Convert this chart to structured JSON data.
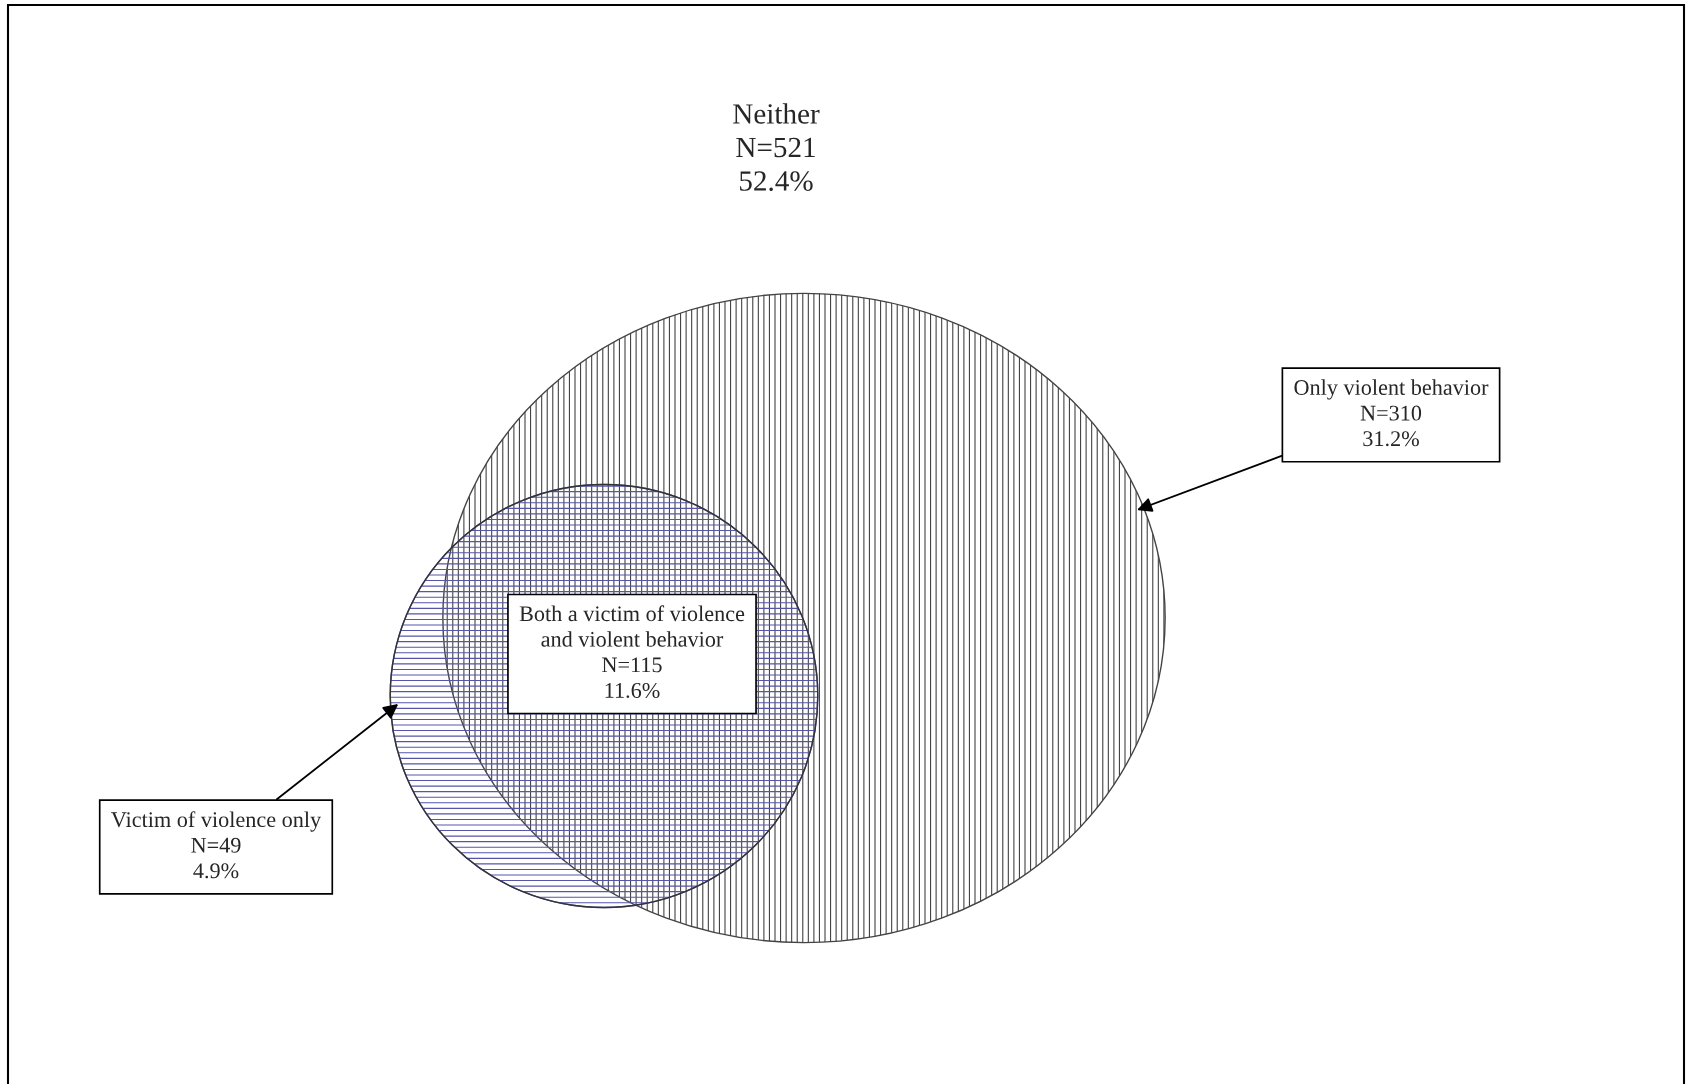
{
  "chart_data": {
    "type": "other",
    "categories": [
      "Neither",
      "Only violent behavior",
      "Both a victim of violence and violent behavior",
      "Victim of violence only"
    ],
    "series": [
      {
        "values": [
          521,
          310,
          115,
          49
        ],
        "value_labels": [
          "N=521",
          "N=310",
          "N=115",
          "N=49"
        ]
      },
      {
        "values": [
          52.4,
          31.2,
          11.6,
          4.9
        ],
        "value_labels": [
          "52.4%",
          "31.2%",
          "11.6%",
          "4.9%"
        ]
      }
    ]
  }
}
